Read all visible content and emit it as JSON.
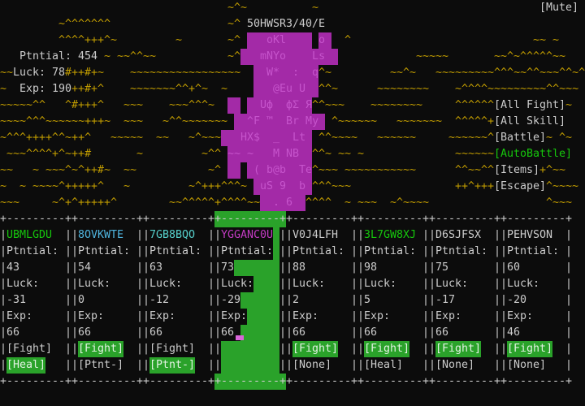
{
  "colors": {
    "background": "#0c0c0c",
    "terrain": "#c19c00",
    "white": "#cccccc",
    "green": "#16c60c",
    "green_bg": "#2aa22a",
    "green_btn_text": "#e2f2e2",
    "blue": "#4fb4de",
    "cyan": "#56d0cc",
    "magenta": "#c23bc2",
    "creature_body": "#a32aa7",
    "creature_glyph": "#c654cc",
    "cursor_pink": "#d966d9"
  },
  "header": {
    "title": "50HWSR3/40/E",
    "mute_label": "[Mute]"
  },
  "stats": {
    "lines": [
      {
        "label": "Ptntial:",
        "value": "454"
      },
      {
        "label": "Luck:",
        "value": "78"
      },
      {
        "label": "Exp:",
        "value": "190"
      }
    ]
  },
  "menu": {
    "items": [
      {
        "label": "[All Fight]",
        "green": false
      },
      {
        "label": "[All Skill]",
        "green": false
      },
      {
        "label": "[Battle]",
        "green": false
      },
      {
        "label": "[AutoBattle]",
        "green": true
      },
      {
        "label": "[Items]",
        "green": false
      },
      {
        "label": "[Escape]",
        "green": false
      }
    ]
  },
  "terrain": {
    "runs": [
      [
        0,
        35,
        "~^~"
      ],
      [
        0,
        48,
        "~"
      ],
      [
        1,
        9,
        "~^^^^^^^"
      ],
      [
        1,
        35,
        "~^"
      ],
      [
        2,
        9,
        "^^^^+++^~"
      ],
      [
        2,
        27,
        "~"
      ],
      [
        2,
        35,
        "~^"
      ],
      [
        2,
        53,
        "^"
      ],
      [
        2,
        82,
        "~~ ~"
      ],
      [
        3,
        16,
        "~"
      ],
      [
        3,
        18,
        "~~^^~~"
      ],
      [
        3,
        35,
        "~^"
      ],
      [
        3,
        64,
        "~~~~~"
      ],
      [
        3,
        76,
        "~~^~^^^^^~~"
      ],
      [
        4,
        0,
        "~~"
      ],
      [
        4,
        10,
        "#++#+~"
      ],
      [
        4,
        20,
        "~~~~~~~~~~~~~~~~~"
      ],
      [
        4,
        49,
        "^~"
      ],
      [
        4,
        60,
        "~~^~"
      ],
      [
        4,
        67,
        "~~~~~~~~~^^^~~^^~~~^^~^"
      ],
      [
        5,
        0,
        "~"
      ],
      [
        5,
        11,
        "++#+^"
      ],
      [
        5,
        20,
        "~~~~~~~^^+^~"
      ],
      [
        5,
        34,
        "~"
      ],
      [
        5,
        49,
        "^^~"
      ],
      [
        5,
        58,
        "~~~~~~~~"
      ],
      [
        5,
        70,
        "~^^^^~~~~~~~~~^^~~~"
      ],
      [
        6,
        0,
        "~~~~~^^"
      ],
      [
        6,
        10,
        "^#+++^"
      ],
      [
        6,
        19,
        "~~~"
      ],
      [
        6,
        26,
        "~~~^^^~"
      ],
      [
        6,
        48,
        "^^~~~"
      ],
      [
        6,
        57,
        "~~~~~~~~"
      ],
      [
        6,
        70,
        "^^^^^^"
      ],
      [
        6,
        87,
        "~"
      ],
      [
        7,
        0,
        "~~~~^^^~~~~~~+++~"
      ],
      [
        7,
        19,
        "~~~"
      ],
      [
        7,
        25,
        "~^^~~~~~~~"
      ],
      [
        7,
        51,
        "^~~~~~~"
      ],
      [
        7,
        61,
        "~~~~~~~"
      ],
      [
        7,
        70,
        "^^^^^+"
      ],
      [
        8,
        0,
        "~^^^++++^^~++^"
      ],
      [
        8,
        17,
        "~~~~~"
      ],
      [
        8,
        24,
        "~~"
      ],
      [
        8,
        29,
        "~^~~~"
      ],
      [
        8,
        49,
        "^^~~~~"
      ],
      [
        8,
        58,
        "~~~~~~"
      ],
      [
        8,
        69,
        "~~~~~~^"
      ],
      [
        8,
        84,
        "~"
      ],
      [
        8,
        86,
        "^~"
      ],
      [
        9,
        1,
        "~~~^^^^+^~++#"
      ],
      [
        9,
        21,
        "~"
      ],
      [
        9,
        31,
        "~^^"
      ],
      [
        9,
        48,
        "^^~"
      ],
      [
        9,
        52,
        "~~ ~"
      ],
      [
        9,
        70,
        "~~~~~~"
      ],
      [
        10,
        0,
        "~~"
      ],
      [
        10,
        5,
        "~"
      ],
      [
        10,
        7,
        "~~~^~^++#~"
      ],
      [
        10,
        19,
        "~~"
      ],
      [
        10,
        32,
        "~^"
      ],
      [
        10,
        48,
        "^~~~"
      ],
      [
        10,
        53,
        "~~~~~~~~~~~"
      ],
      [
        10,
        70,
        "^^~~^^"
      ],
      [
        10,
        83,
        "+^~~"
      ],
      [
        11,
        0,
        "~"
      ],
      [
        11,
        3,
        "~"
      ],
      [
        11,
        5,
        "~~~~^+++++^"
      ],
      [
        11,
        19,
        "~"
      ],
      [
        11,
        29,
        "~^+++^^^~"
      ],
      [
        11,
        48,
        "^^^~~~"
      ],
      [
        11,
        70,
        "++^+++"
      ],
      [
        11,
        84,
        "^~~~~"
      ],
      [
        12,
        0,
        "~~~"
      ],
      [
        12,
        8,
        "~^+^+++++^"
      ],
      [
        12,
        26,
        "~~^^^^^+^^^^~~"
      ],
      [
        12,
        47,
        "^^^^"
      ],
      [
        12,
        53,
        "~ ~~~"
      ],
      [
        12,
        60,
        "~^~~~~"
      ],
      [
        12,
        84,
        "^~~~"
      ]
    ]
  },
  "creature": {
    "segments": [
      [
        2,
        38,
        "   oKl    "
      ],
      [
        2,
        49,
        "o "
      ],
      [
        3,
        37,
        "   mNYo    Ls  "
      ],
      [
        4,
        39,
        "  W*  :  q"
      ],
      [
        5,
        39,
        "   @Eu U  "
      ],
      [
        6,
        35,
        "  "
      ],
      [
        6,
        38,
        "  Uф  фΣ Я"
      ],
      [
        7,
        36,
        "  ^F ™  Br My "
      ],
      [
        8,
        34,
        "   HX$  _  Lt "
      ],
      [
        9,
        35,
        "~~ ~   M NB  "
      ],
      [
        10,
        35,
        "  "
      ],
      [
        10,
        38,
        " ( b@b  Te"
      ],
      [
        11,
        39,
        " uS 9  b "
      ],
      [
        12,
        40,
        "  . 6  "
      ]
    ]
  },
  "party": {
    "labels": {
      "ptntial": "Ptntial:",
      "luck": "Luck:",
      "exp": "Exp:"
    },
    "members": [
      {
        "name": "UBMLGDU",
        "color": "green",
        "ptntial": "43",
        "luck": "-31",
        "exp": "66",
        "selected": false,
        "cursor": false,
        "actions": [
          {
            "label": "[Fight]",
            "highlight": false
          },
          {
            "label": "[Heal]",
            "highlight": true
          }
        ]
      },
      {
        "name": "8OVKWTE",
        "color": "blue",
        "ptntial": "54",
        "luck": "0",
        "exp": "66",
        "selected": false,
        "cursor": false,
        "actions": [
          {
            "label": "[Fight]",
            "highlight": true
          },
          {
            "label": "[Ptnt-]",
            "highlight": false
          }
        ]
      },
      {
        "name": "7GB8BQO",
        "color": "cyan",
        "ptntial": "63",
        "luck": "-12",
        "exp": "66",
        "selected": false,
        "cursor": false,
        "actions": [
          {
            "label": "[Fight]",
            "highlight": false
          },
          {
            "label": "[Ptnt-]",
            "highlight": true
          }
        ]
      },
      {
        "name": "YGGANC0U",
        "color": "magenta",
        "ptntial": "73",
        "luck": "-29",
        "exp": "66",
        "selected": true,
        "cursor": true,
        "actions": []
      },
      {
        "name": "V0J4LFH",
        "color": "white",
        "ptntial": "88",
        "luck": "2",
        "exp": "66",
        "selected": false,
        "cursor": false,
        "actions": [
          {
            "label": "[Fight]",
            "highlight": true
          },
          {
            "label": "[None]",
            "highlight": false
          }
        ]
      },
      {
        "name": "3L7GW8XJ",
        "color": "green",
        "ptntial": "98",
        "luck": "5",
        "exp": "66",
        "selected": false,
        "cursor": false,
        "actions": [
          {
            "label": "[Fight]",
            "highlight": true
          },
          {
            "label": "[Heal]",
            "highlight": false
          }
        ]
      },
      {
        "name": "D6SJFSX",
        "color": "white",
        "ptntial": "75",
        "luck": "-17",
        "exp": "66",
        "selected": false,
        "cursor": false,
        "actions": [
          {
            "label": "[Fight]",
            "highlight": true
          },
          {
            "label": "[None]",
            "highlight": false
          }
        ]
      },
      {
        "name": "PEHVSON",
        "color": "white",
        "ptntial": "60",
        "luck": "-20",
        "exp": "46",
        "selected": false,
        "cursor": false,
        "actions": [
          {
            "label": "[Fight]",
            "highlight": true
          },
          {
            "label": "[None]",
            "highlight": false
          }
        ]
      }
    ]
  }
}
